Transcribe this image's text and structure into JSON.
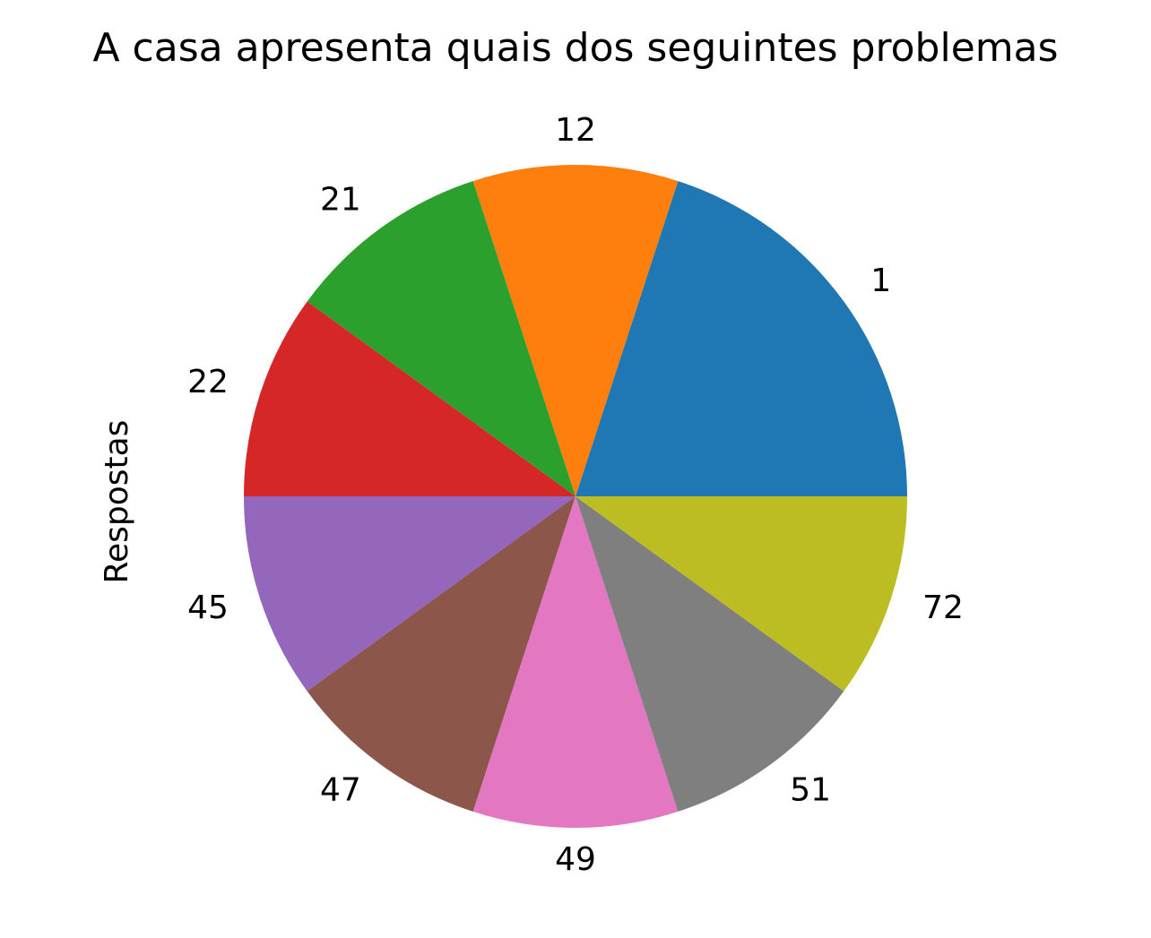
{
  "chart_data": {
    "type": "pie",
    "title": "A casa apresenta quais dos seguintes problemas",
    "ylabel": "Respostas",
    "xlabel": "",
    "categories": [
      "1",
      "12",
      "21",
      "22",
      "45",
      "47",
      "49",
      "51",
      "72"
    ],
    "values": [
      2,
      1,
      1,
      1,
      1,
      1,
      1,
      1,
      1
    ],
    "colors": [
      "#1f77b4",
      "#ff7f0e",
      "#2ca02c",
      "#d62728",
      "#9467bd",
      "#8c564b",
      "#e377c2",
      "#7f7f7f",
      "#bcbd22"
    ],
    "start_angle_deg": 0,
    "direction": "counterclockwise"
  }
}
